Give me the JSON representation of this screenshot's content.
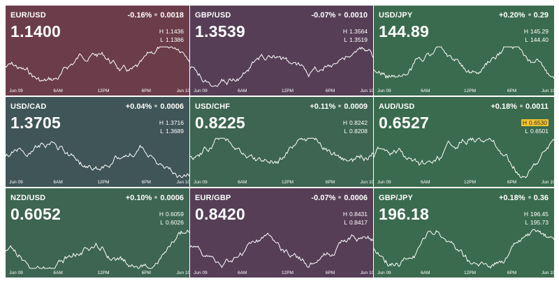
{
  "tiles": [
    {
      "pair": "EUR/USD",
      "change_pct": "-0.16%",
      "change_abs": "0.0018",
      "price": "1.1400",
      "high": "1.1436",
      "low": "1.1386",
      "high_badge": false,
      "color": "#6b3d4a",
      "axis": [
        "Jun 09",
        "6AM",
        "12PM",
        "6PM",
        "Jun 10"
      ]
    },
    {
      "pair": "GBP/USD",
      "change_pct": "-0.07%",
      "change_abs": "0.0010",
      "price": "1.3539",
      "high": "1.3564",
      "low": "1.3519",
      "high_badge": false,
      "color": "#563e57",
      "axis": [
        "Jun 09",
        "6AM",
        "12PM",
        "6PM",
        "Jun 10"
      ]
    },
    {
      "pair": "USD/JPY",
      "change_pct": "+0.20%",
      "change_abs": "0.29",
      "price": "144.89",
      "high": "145.29",
      "low": "144.40",
      "high_badge": false,
      "color": "#3a6b4e",
      "axis": [
        "Jun 09",
        "6AM",
        "12PM",
        "6PM",
        "Jun 10"
      ]
    },
    {
      "pair": "USD/CAD",
      "change_pct": "+0.04%",
      "change_abs": "0.0006",
      "price": "1.3705",
      "high": "1.3716",
      "low": "1.3689",
      "high_badge": false,
      "color": "#3f5557",
      "axis": [
        "Jun 09",
        "6AM",
        "12PM",
        "6PM",
        "Jun 10"
      ]
    },
    {
      "pair": "USD/CHF",
      "change_pct": "+0.11%",
      "change_abs": "0.0009",
      "price": "0.8225",
      "high": "0.8242",
      "low": "0.8208",
      "high_badge": false,
      "color": "#3d6552",
      "axis": [
        "Jun 09",
        "6AM",
        "12PM",
        "6PM",
        "Jun 10"
      ]
    },
    {
      "pair": "AUD/USD",
      "change_pct": "+0.18%",
      "change_abs": "0.0011",
      "price": "0.6527",
      "high": "0.6530",
      "low": "0.6501",
      "high_badge": true,
      "color": "#3a6b4e",
      "axis": [
        "Jun 09",
        "6AM",
        "12PM",
        "6PM",
        "Jun 10"
      ]
    },
    {
      "pair": "NZD/USD",
      "change_pct": "+0.10%",
      "change_abs": "0.0006",
      "price": "0.6052",
      "high": "0.6059",
      "low": "0.6026",
      "high_badge": false,
      "color": "#3d6552",
      "axis": [
        "Jun 09",
        "6AM",
        "12PM",
        "6PM",
        "Jun 10"
      ]
    },
    {
      "pair": "EUR/GBP",
      "change_pct": "-0.07%",
      "change_abs": "0.0006",
      "price": "0.8420",
      "high": "0.8431",
      "low": "0.8417",
      "high_badge": false,
      "color": "#563e57",
      "axis": [
        "Jun 09",
        "6AM",
        "12PM",
        "6PM",
        "Jun 10"
      ]
    },
    {
      "pair": "GBP/JPY",
      "change_pct": "+0.18%",
      "change_abs": "0.36",
      "price": "196.18",
      "high": "196.45",
      "low": "195.73",
      "high_badge": false,
      "color": "#3a6b4e",
      "axis": [
        "Jun 09",
        "6AM",
        "12PM",
        "6PM",
        "Jun 10"
      ]
    }
  ],
  "labels": {
    "high_key": "H",
    "low_key": "L"
  }
}
